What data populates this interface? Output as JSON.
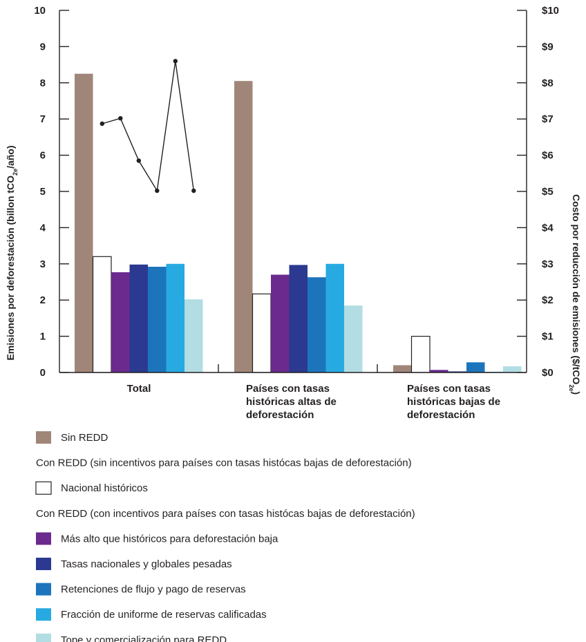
{
  "chart_data": {
    "type": "bar",
    "categories": [
      [
        "Total"
      ],
      [
        "Países con tasas",
        "históricas altas de",
        "deforestación"
      ],
      [
        "Países con tasas",
        "históricas bajas de",
        "deforestación"
      ]
    ],
    "series": [
      {
        "name": "Sin REDD",
        "color": "#a08678",
        "values": [
          8.25,
          8.05,
          0.2
        ]
      },
      {
        "name": "Nacional históricos",
        "color": "#ffffff",
        "values": [
          3.2,
          2.17,
          1.0
        ]
      },
      {
        "name": "Más alto que históricos para deforestación baja",
        "color": "#6a2a8e",
        "values": [
          2.77,
          2.7,
          0.07
        ]
      },
      {
        "name": "Tasas nacionales y globales pesadas",
        "color": "#2b3990",
        "values": [
          2.98,
          2.97,
          0.03
        ]
      },
      {
        "name": "Retenciones de flujo y pago de reservas",
        "color": "#1c75bc",
        "values": [
          2.92,
          2.63,
          0.28
        ]
      },
      {
        "name": "Fracción de uniforme de reservas calificadas",
        "color": "#27aae1",
        "values": [
          3.0,
          3.0,
          0.02
        ]
      },
      {
        "name": "Tope y comercialización para REDD",
        "color": "#b1dde3",
        "values": [
          2.02,
          1.85,
          0.17
        ]
      }
    ],
    "cost_line": {
      "axis": "right",
      "category": "Total",
      "series_index": [
        1,
        2,
        3,
        4,
        5,
        6
      ],
      "values": [
        6.87,
        7.02,
        5.85,
        5.02,
        8.6,
        5.02
      ]
    },
    "ylim": [
      0,
      10
    ],
    "y2lim": [
      0,
      10
    ],
    "left_ticks": [
      "0",
      "1",
      "2",
      "3",
      "4",
      "5",
      "6",
      "7",
      "8",
      "9",
      "10"
    ],
    "right_ticks": [
      "$0",
      "$1",
      "$2",
      "$3",
      "$4",
      "$5",
      "$6",
      "$7",
      "$8",
      "$9",
      "$10"
    ],
    "ylabel": {
      "main": "Emisiones por deforestación (billon tCO",
      "sub": "2e",
      "tail": "/año)"
    },
    "y2label": {
      "main": "Costo por reducción de emisiones ($/tCO",
      "sub": "2e",
      "tail": ")"
    },
    "legend": [
      {
        "kind": "swatch",
        "series": 0
      },
      {
        "kind": "heading",
        "text": "Con REDD (sin incentivos para países con tasas histócas bajas de deforestación)"
      },
      {
        "kind": "swatch",
        "series": 1
      },
      {
        "kind": "heading",
        "text": "Con REDD (con incentivos para países con tasas histócas bajas de deforestación)"
      },
      {
        "kind": "swatch",
        "series": 2
      },
      {
        "kind": "swatch",
        "series": 3
      },
      {
        "kind": "swatch",
        "series": 4
      },
      {
        "kind": "swatch",
        "series": 5
      },
      {
        "kind": "swatch",
        "series": 6
      }
    ],
    "grid": false,
    "legend_position": "bottom"
  }
}
